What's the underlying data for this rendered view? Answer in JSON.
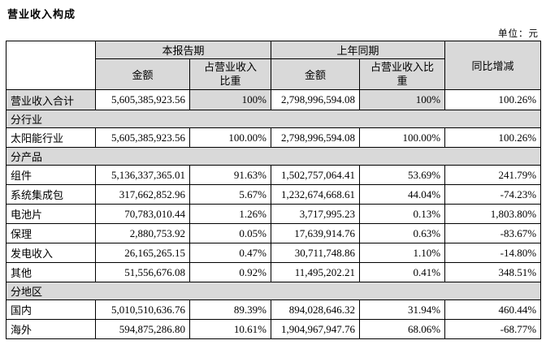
{
  "page": {
    "title": "营业收入构成",
    "unit_label": "单位：元"
  },
  "table": {
    "header": {
      "current_period": "本报告期",
      "prior_period": "上年同期",
      "amount_current": "金额",
      "ratio_current": "占营业收入\n比重",
      "amount_prior": "金额",
      "ratio_prior": "占营业收入比\n重",
      "yoy": "同比增减"
    },
    "colors": {
      "header_bg": "#d9d9d9",
      "section_bg": "#d9d9d9",
      "border": "#000000"
    },
    "rows": [
      {
        "type": "data",
        "highlight": true,
        "label": "营业收入合计",
        "amount_cur": "5,605,385,923.56",
        "ratio_cur": "100%",
        "amount_prior": "2,798,996,594.08",
        "ratio_prior": "100%",
        "yoy": "100.26%"
      },
      {
        "type": "section",
        "label": "分行业"
      },
      {
        "type": "data",
        "label": "太阳能行业",
        "amount_cur": "5,605,385,923.56",
        "ratio_cur": "100.00%",
        "amount_prior": "2,798,996,594.08",
        "ratio_prior": "100.00%",
        "yoy": "100.26%"
      },
      {
        "type": "section",
        "label": "分产品"
      },
      {
        "type": "data",
        "label": "组件",
        "amount_cur": "5,136,337,365.01",
        "ratio_cur": "91.63%",
        "amount_prior": "1,502,757,064.41",
        "ratio_prior": "53.69%",
        "yoy": "241.79%"
      },
      {
        "type": "data",
        "label": "系统集成包",
        "amount_cur": "317,662,852.96",
        "ratio_cur": "5.67%",
        "amount_prior": "1,232,674,668.61",
        "ratio_prior": "44.04%",
        "yoy": "-74.23%"
      },
      {
        "type": "data",
        "label": "电池片",
        "amount_cur": "70,783,010.44",
        "ratio_cur": "1.26%",
        "amount_prior": "3,717,995.23",
        "ratio_prior": "0.13%",
        "yoy": "1,803.80%"
      },
      {
        "type": "data",
        "label": "保理",
        "amount_cur": "2,880,753.92",
        "ratio_cur": "0.05%",
        "amount_prior": "17,639,914.76",
        "ratio_prior": "0.63%",
        "yoy": "-83.67%"
      },
      {
        "type": "data",
        "label": "发电收入",
        "amount_cur": "26,165,265.15",
        "ratio_cur": "0.47%",
        "amount_prior": "30,711,748.86",
        "ratio_prior": "1.10%",
        "yoy": "-14.80%"
      },
      {
        "type": "data",
        "label": "其他",
        "amount_cur": "51,556,676.08",
        "ratio_cur": "0.92%",
        "amount_prior": "11,495,202.21",
        "ratio_prior": "0.41%",
        "yoy": "348.51%"
      },
      {
        "type": "section",
        "label": "分地区"
      },
      {
        "type": "data",
        "label": "国内",
        "amount_cur": "5,010,510,636.76",
        "ratio_cur": "89.39%",
        "amount_prior": "894,028,646.32",
        "ratio_prior": "31.94%",
        "yoy": "460.44%"
      },
      {
        "type": "data",
        "label": "海外",
        "amount_cur": "594,875,286.80",
        "ratio_cur": "10.61%",
        "amount_prior": "1,904,967,947.76",
        "ratio_prior": "68.06%",
        "yoy": "-68.77%"
      }
    ]
  }
}
